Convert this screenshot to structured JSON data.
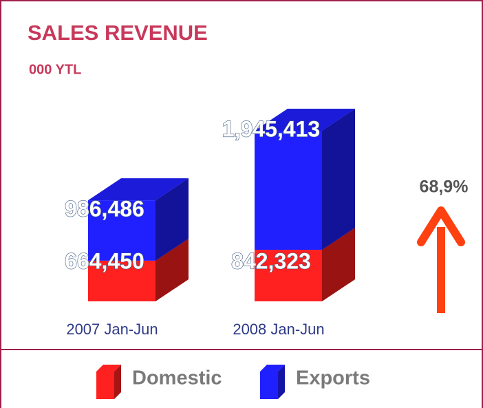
{
  "chart_data": {
    "type": "bar3d-stacked",
    "title": "SALES REVENUE",
    "subtitle": "000 YTL",
    "categories": [
      "2007 Jan-Jun",
      "2008 Jan-Jun"
    ],
    "series": [
      {
        "name": "Domestic",
        "color": "#ff2020",
        "values": [
          664450,
          842323
        ],
        "value_labels": [
          "664,450",
          "842,323"
        ]
      },
      {
        "name": "Exports",
        "color": "#2020ff",
        "values": [
          986486,
          1945413
        ],
        "value_labels": [
          "986,486",
          "1,945,413"
        ]
      }
    ],
    "annotation": "68,9%"
  }
}
